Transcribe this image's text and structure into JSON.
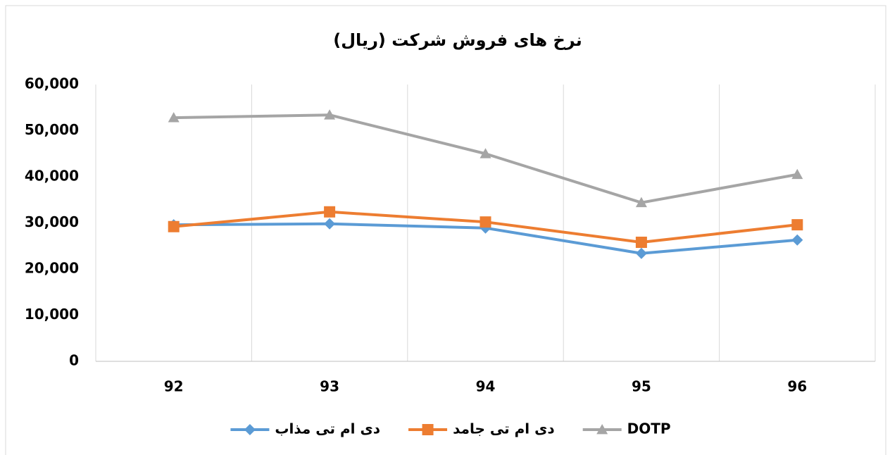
{
  "chart_data": {
    "type": "line",
    "title": "نرخ های فروش شرکت (ریال)",
    "categories": [
      "92",
      "93",
      "94",
      "95",
      "96"
    ],
    "series": [
      {
        "name": "دی ام تی مذاب",
        "color": "#5b9bd5",
        "marker": "diamond",
        "values": [
          29600,
          29800,
          28900,
          23400,
          26300
        ]
      },
      {
        "name": "دی ام تی جامد",
        "color": "#ed7d31",
        "marker": "square",
        "values": [
          29200,
          32400,
          30200,
          25800,
          29600
        ]
      },
      {
        "name": "DOTP",
        "color": "#a5a5a5",
        "marker": "triangle",
        "values": [
          52800,
          53400,
          45000,
          34400,
          40500
        ]
      }
    ],
    "ylim": [
      0,
      60000
    ],
    "yticks": [
      0,
      {
        "value": 10000,
        "label": "10,000"
      },
      {
        "value": 20000,
        "label": "20,000"
      },
      {
        "value": 30000,
        "label": "30,000"
      },
      {
        "value": 40000,
        "label": "40,000"
      },
      {
        "value": 50000,
        "label": "50,000"
      },
      {
        "value": 60000,
        "label": "60,000"
      }
    ],
    "xgrid": true,
    "legend": "bottom"
  }
}
